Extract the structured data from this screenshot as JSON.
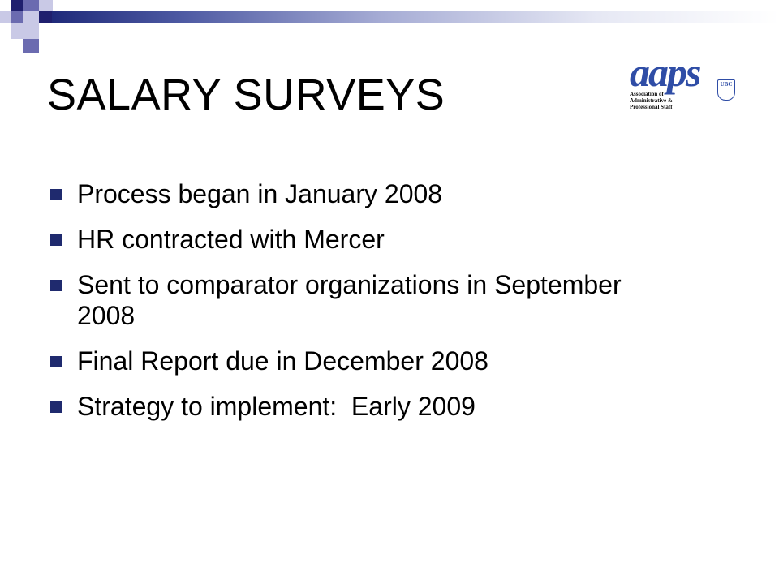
{
  "slide": {
    "title": "SALARY SURVEYS",
    "logo": {
      "wordmark": "aaps",
      "shield": "UBC",
      "subtitle_lines": [
        "Association of",
        "Administrative &",
        "Professional Staff"
      ]
    },
    "bullets": [
      "Process began in January 2008",
      "HR contracted with Mercer",
      "Sent to comparator organizations in September 2008",
      "Final Report due in December 2008",
      "Strategy to implement:  Early 2009"
    ]
  },
  "colors": {
    "accent_dark": "#1f1f6e",
    "logo_blue": "#2f4da6",
    "bullet": "#1f2a6e"
  }
}
